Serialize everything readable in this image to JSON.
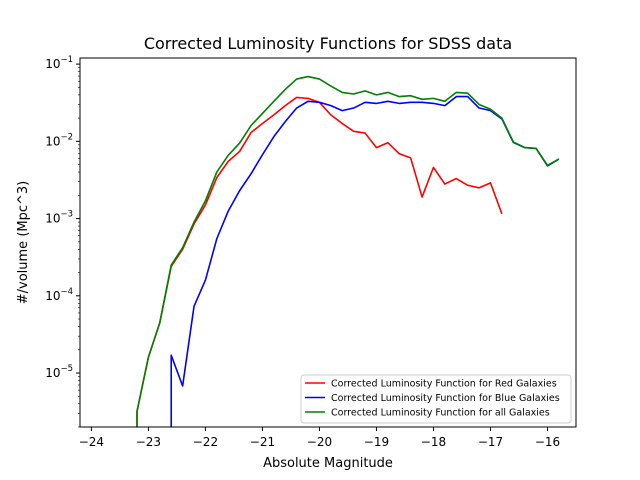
{
  "chart_data": {
    "type": "line",
    "title": "Corrected Luminosity Functions for SDSS data",
    "xlabel": "Absolute Magnitude",
    "ylabel": "#/volume (Mpc^3)",
    "xlim": [
      -24.2,
      -15.5
    ],
    "ylim": [
      2e-06,
      0.12
    ],
    "yscale": "log",
    "grid": false,
    "legend_position": "lower-right",
    "xticks": [
      -24,
      -23,
      -22,
      -21,
      -20,
      -19,
      -18,
      -17,
      -16
    ],
    "xtick_labels": [
      "−24",
      "−23",
      "−22",
      "−21",
      "−20",
      "−19",
      "−18",
      "−17",
      "−16"
    ],
    "yticks": [
      1e-05,
      0.0001,
      0.001,
      0.01,
      0.1
    ],
    "ytick_labels": [
      {
        "base": "10",
        "exp": "−5"
      },
      {
        "base": "10",
        "exp": "−4"
      },
      {
        "base": "10",
        "exp": "−3"
      },
      {
        "base": "10",
        "exp": "−2"
      },
      {
        "base": "10",
        "exp": "−1"
      }
    ],
    "series": [
      {
        "name": "Corrected Luminosity Function for Red Galaxies",
        "color": "#ff0000",
        "x": [
          -23.2,
          -23.2,
          -23.0,
          -22.8,
          -22.6,
          -22.4,
          -22.2,
          -22.0,
          -21.8,
          -21.6,
          -21.4,
          -21.2,
          -21.0,
          -20.8,
          -20.6,
          -20.4,
          -20.2,
          -20.0,
          -19.8,
          -19.6,
          -19.4,
          -19.2,
          -19.0,
          -18.8,
          -18.6,
          -18.4,
          -18.2,
          -18.0,
          -17.8,
          -17.6,
          -17.4,
          -17.2,
          -17.0,
          -16.8
        ],
        "y": [
          2e-06,
          3.2e-06,
          1.6e-05,
          4.5e-05,
          0.00024,
          0.0004,
          0.00085,
          0.0015,
          0.0034,
          0.0055,
          0.0074,
          0.013,
          0.017,
          0.022,
          0.029,
          0.037,
          0.036,
          0.032,
          0.022,
          0.017,
          0.0135,
          0.0128,
          0.0083,
          0.0096,
          0.0069,
          0.0061,
          0.0019,
          0.0046,
          0.0028,
          0.0033,
          0.0027,
          0.0025,
          0.0029,
          0.00115
        ]
      },
      {
        "name": "Corrected Luminosity Function for Blue Galaxies",
        "color": "#0000ff",
        "x": [
          -22.6,
          -22.6,
          -22.4,
          -22.4,
          -22.2,
          -22.0,
          -21.8,
          -21.6,
          -21.4,
          -21.2,
          -21.0,
          -20.8,
          -20.6,
          -20.4,
          -20.2,
          -20.0,
          -19.8,
          -19.6,
          -19.4,
          -19.2,
          -19.0,
          -18.8,
          -18.6,
          -18.4,
          -18.2,
          -18.0,
          -17.8,
          -17.6,
          -17.4,
          -17.2,
          -17.0,
          -16.8,
          -16.6,
          -16.4,
          -16.2,
          -16.0,
          -15.8
        ],
        "y": [
          2e-06,
          1.7e-05,
          6.8e-06,
          6.8e-06,
          7.3e-05,
          0.00016,
          0.00055,
          0.00125,
          0.0023,
          0.0038,
          0.0067,
          0.0115,
          0.018,
          0.027,
          0.033,
          0.032,
          0.029,
          0.025,
          0.027,
          0.032,
          0.031,
          0.033,
          0.031,
          0.032,
          0.032,
          0.031,
          0.029,
          0.038,
          0.038,
          0.027,
          0.025,
          0.0195,
          0.0097,
          0.0083,
          0.0081,
          0.0048,
          0.0059
        ]
      },
      {
        "name": "Corrected Luminosity Function for all Galaxies",
        "color": "#008000",
        "x": [
          -23.2,
          -23.2,
          -23.0,
          -22.8,
          -22.6,
          -22.4,
          -22.2,
          -22.0,
          -21.8,
          -21.6,
          -21.4,
          -21.2,
          -21.0,
          -20.8,
          -20.6,
          -20.4,
          -20.2,
          -20.0,
          -19.8,
          -19.6,
          -19.4,
          -19.2,
          -19.0,
          -18.8,
          -18.6,
          -18.4,
          -18.2,
          -18.0,
          -17.8,
          -17.6,
          -17.4,
          -17.2,
          -17.0,
          -16.8,
          -16.6,
          -16.4,
          -16.2,
          -16.0,
          -15.8
        ],
        "y": [
          2e-06,
          3.2e-06,
          1.6e-05,
          4.5e-05,
          0.00025,
          0.00042,
          0.0009,
          0.0017,
          0.004,
          0.0066,
          0.0095,
          0.016,
          0.023,
          0.033,
          0.047,
          0.064,
          0.069,
          0.064,
          0.052,
          0.043,
          0.041,
          0.045,
          0.04,
          0.043,
          0.038,
          0.039,
          0.035,
          0.036,
          0.033,
          0.043,
          0.042,
          0.03,
          0.026,
          0.02,
          0.0098,
          0.0083,
          0.0081,
          0.0049,
          0.0059
        ]
      }
    ]
  }
}
